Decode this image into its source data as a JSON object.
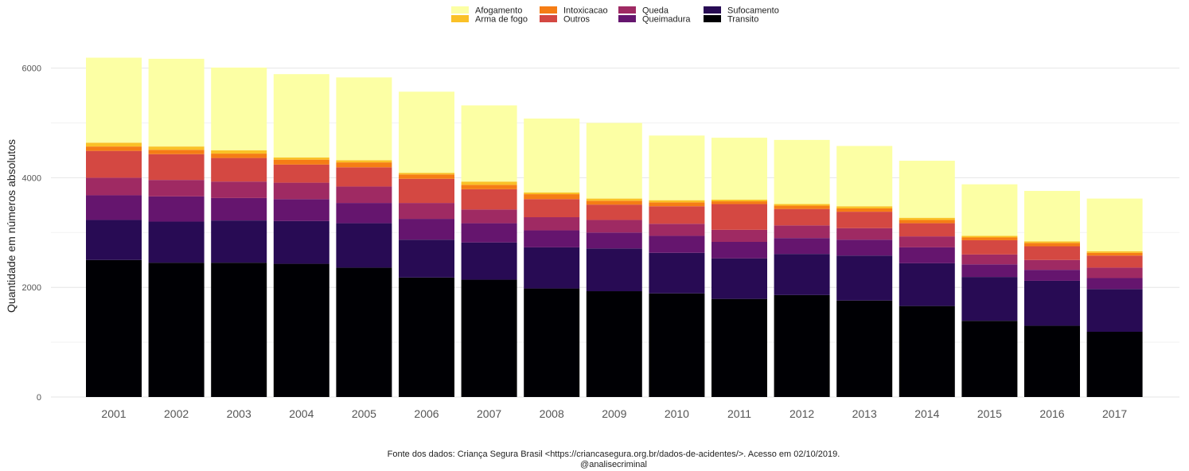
{
  "chart_data": {
    "type": "bar",
    "stacked": true,
    "ylabel": "Quantidade em números absolutos",
    "xlabel": "",
    "ylim": [
      0,
      6200
    ],
    "yticks": [
      0,
      2000,
      4000,
      6000
    ],
    "grid": true,
    "legend_position": "top",
    "categories": [
      "2001",
      "2002",
      "2003",
      "2004",
      "2005",
      "2006",
      "2007",
      "2008",
      "2009",
      "2010",
      "2011",
      "2012",
      "2013",
      "2014",
      "2015",
      "2016",
      "2017"
    ],
    "series": [
      {
        "name": "Transito",
        "color": "#000004",
        "values": [
          2500,
          2450,
          2450,
          2430,
          2360,
          2180,
          2140,
          1980,
          1930,
          1890,
          1790,
          1860,
          1760,
          1660,
          1390,
          1300,
          1190
        ]
      },
      {
        "name": "Sufocamento",
        "color": "#280b54",
        "values": [
          730,
          750,
          770,
          780,
          810,
          690,
          680,
          750,
          780,
          740,
          740,
          750,
          820,
          780,
          800,
          820,
          780
        ]
      },
      {
        "name": "Queimadura",
        "color": "#65156e",
        "values": [
          450,
          460,
          410,
          400,
          370,
          380,
          350,
          310,
          290,
          310,
          300,
          290,
          290,
          290,
          230,
          200,
          200
        ]
      },
      {
        "name": "Queda",
        "color": "#9f2a63",
        "values": [
          320,
          300,
          300,
          300,
          300,
          290,
          250,
          240,
          230,
          220,
          220,
          230,
          210,
          200,
          180,
          180,
          190
        ]
      },
      {
        "name": "Outros",
        "color": "#d44842",
        "values": [
          490,
          470,
          430,
          330,
          350,
          440,
          370,
          330,
          280,
          320,
          470,
          300,
          300,
          240,
          260,
          250,
          220
        ]
      },
      {
        "name": "Intoxicacao",
        "color": "#f57d15",
        "values": [
          80,
          80,
          80,
          90,
          90,
          80,
          80,
          90,
          70,
          70,
          50,
          60,
          60,
          60,
          50,
          60,
          50
        ]
      },
      {
        "name": "Arma de fogo",
        "color": "#fac127",
        "values": [
          70,
          60,
          60,
          40,
          40,
          30,
          60,
          30,
          40,
          40,
          30,
          30,
          40,
          40,
          30,
          30,
          30
        ]
      },
      {
        "name": "Afogamento",
        "color": "#fcffa4",
        "values": [
          1550,
          1600,
          1510,
          1520,
          1510,
          1480,
          1390,
          1350,
          1380,
          1180,
          1130,
          1170,
          1100,
          1040,
          940,
          920,
          960
        ]
      }
    ]
  },
  "legend": {
    "items": [
      {
        "label": "Afogamento"
      },
      {
        "label": "Arma de fogo"
      },
      {
        "label": "Intoxicacao"
      },
      {
        "label": "Outros"
      },
      {
        "label": "Queda"
      },
      {
        "label": "Queimadura"
      },
      {
        "label": "Sufocamento"
      },
      {
        "label": "Transito"
      }
    ]
  },
  "caption": {
    "line1": "Fonte dos dados: Criança Segura Brasil <https://criancasegura.org.br/dados-de-acidentes/>. Acesso em 02/10/2019.",
    "line2": "@analisecriminal"
  }
}
